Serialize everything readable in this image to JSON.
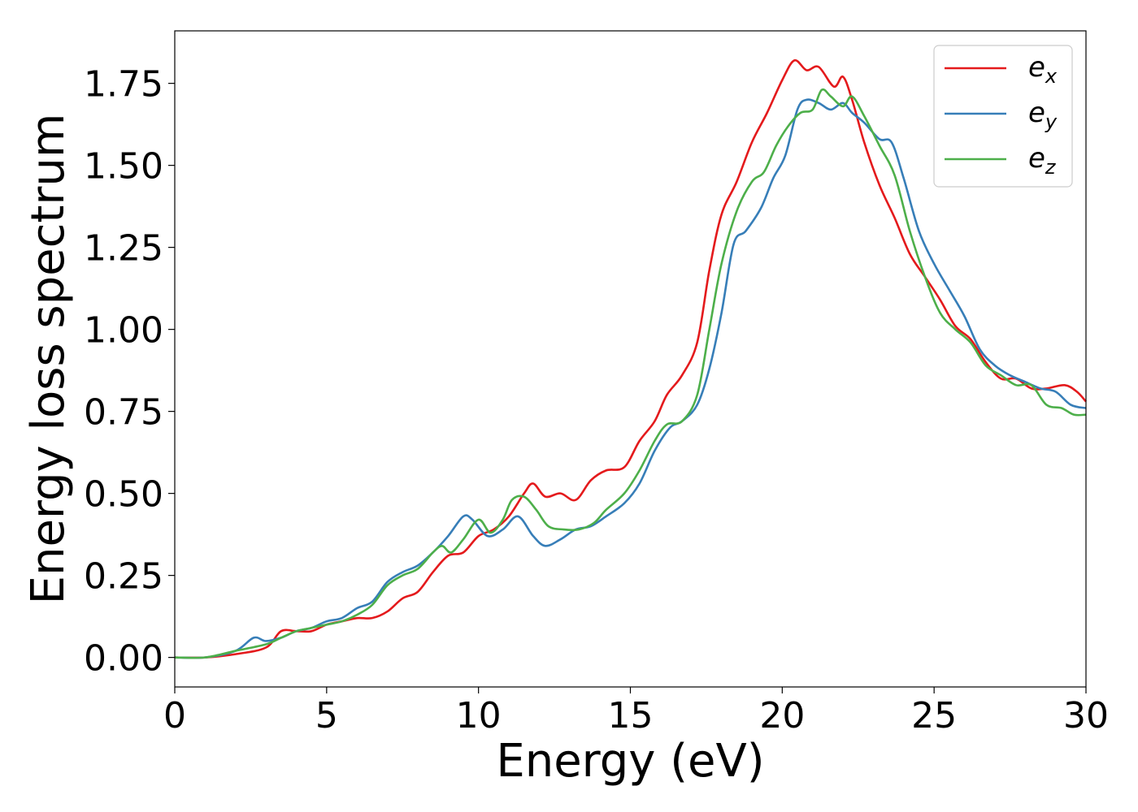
{
  "chart_data": {
    "type": "line",
    "title": "",
    "xlabel": "Energy (eV)",
    "ylabel": "Energy loss spectrum",
    "xlim": [
      0,
      30
    ],
    "ylim": [
      -0.09,
      1.91
    ],
    "xticks": [
      0,
      5,
      10,
      15,
      20,
      25,
      30
    ],
    "xtick_labels": [
      "0",
      "5",
      "10",
      "15",
      "20",
      "25",
      "30"
    ],
    "yticks": [
      0.0,
      0.25,
      0.5,
      0.75,
      1.0,
      1.25,
      1.5,
      1.75
    ],
    "ytick_labels": [
      "0.00",
      "0.25",
      "0.50",
      "0.75",
      "1.00",
      "1.25",
      "1.50",
      "1.75"
    ],
    "grid": false,
    "legend_position": "top-right",
    "series": [
      {
        "name": "e",
        "subscript": "x",
        "color": "#e41a1c",
        "points": [
          [
            0,
            0
          ],
          [
            1,
            0
          ],
          [
            2,
            0.01
          ],
          [
            3,
            0.03
          ],
          [
            3.5,
            0.08
          ],
          [
            4,
            0.08
          ],
          [
            4.5,
            0.08
          ],
          [
            5,
            0.1
          ],
          [
            5.5,
            0.11
          ],
          [
            6,
            0.12
          ],
          [
            6.5,
            0.12
          ],
          [
            7,
            0.14
          ],
          [
            7.5,
            0.18
          ],
          [
            8,
            0.2
          ],
          [
            8.5,
            0.26
          ],
          [
            9,
            0.31
          ],
          [
            9.5,
            0.32
          ],
          [
            10,
            0.37
          ],
          [
            10.5,
            0.39
          ],
          [
            11,
            0.43
          ],
          [
            11.5,
            0.5
          ],
          [
            11.8,
            0.53
          ],
          [
            12.2,
            0.49
          ],
          [
            12.7,
            0.5
          ],
          [
            13.2,
            0.48
          ],
          [
            13.7,
            0.54
          ],
          [
            14.2,
            0.57
          ],
          [
            14.8,
            0.58
          ],
          [
            15.3,
            0.66
          ],
          [
            15.8,
            0.72
          ],
          [
            16.2,
            0.8
          ],
          [
            16.7,
            0.86
          ],
          [
            17.2,
            0.96
          ],
          [
            17.6,
            1.18
          ],
          [
            18,
            1.35
          ],
          [
            18.5,
            1.45
          ],
          [
            19,
            1.57
          ],
          [
            19.5,
            1.66
          ],
          [
            20,
            1.76
          ],
          [
            20.4,
            1.82
          ],
          [
            20.8,
            1.79
          ],
          [
            21.2,
            1.8
          ],
          [
            21.7,
            1.74
          ],
          [
            22,
            1.77
          ],
          [
            22.3,
            1.7
          ],
          [
            22.7,
            1.57
          ],
          [
            23.2,
            1.44
          ],
          [
            23.7,
            1.34
          ],
          [
            24.2,
            1.23
          ],
          [
            24.7,
            1.16
          ],
          [
            25.2,
            1.09
          ],
          [
            25.7,
            1.01
          ],
          [
            26.2,
            0.97
          ],
          [
            26.7,
            0.9
          ],
          [
            27.2,
            0.85
          ],
          [
            27.7,
            0.85
          ],
          [
            28.2,
            0.82
          ],
          [
            28.7,
            0.82
          ],
          [
            29.3,
            0.83
          ],
          [
            29.7,
            0.81
          ],
          [
            30,
            0.78
          ]
        ]
      },
      {
        "name": "e",
        "subscript": "y",
        "color": "#377eb8",
        "points": [
          [
            0,
            0
          ],
          [
            1,
            0
          ],
          [
            2,
            0.02
          ],
          [
            2.6,
            0.06
          ],
          [
            3,
            0.05
          ],
          [
            3.5,
            0.06
          ],
          [
            4,
            0.08
          ],
          [
            4.5,
            0.09
          ],
          [
            5,
            0.11
          ],
          [
            5.5,
            0.12
          ],
          [
            6,
            0.15
          ],
          [
            6.5,
            0.17
          ],
          [
            7,
            0.23
          ],
          [
            7.5,
            0.26
          ],
          [
            8,
            0.28
          ],
          [
            8.5,
            0.32
          ],
          [
            9,
            0.37
          ],
          [
            9.5,
            0.43
          ],
          [
            9.8,
            0.42
          ],
          [
            10.3,
            0.37
          ],
          [
            10.8,
            0.39
          ],
          [
            11.3,
            0.43
          ],
          [
            11.8,
            0.37
          ],
          [
            12.2,
            0.34
          ],
          [
            12.7,
            0.36
          ],
          [
            13.2,
            0.39
          ],
          [
            13.7,
            0.4
          ],
          [
            14.2,
            0.43
          ],
          [
            14.8,
            0.47
          ],
          [
            15.3,
            0.53
          ],
          [
            15.8,
            0.63
          ],
          [
            16.3,
            0.7
          ],
          [
            16.7,
            0.72
          ],
          [
            17.2,
            0.77
          ],
          [
            17.6,
            0.88
          ],
          [
            18,
            1.05
          ],
          [
            18.4,
            1.26
          ],
          [
            18.8,
            1.3
          ],
          [
            19.3,
            1.37
          ],
          [
            19.7,
            1.46
          ],
          [
            20.1,
            1.53
          ],
          [
            20.5,
            1.67
          ],
          [
            20.8,
            1.7
          ],
          [
            21.2,
            1.69
          ],
          [
            21.6,
            1.67
          ],
          [
            22,
            1.69
          ],
          [
            22.3,
            1.66
          ],
          [
            22.7,
            1.63
          ],
          [
            23.2,
            1.58
          ],
          [
            23.6,
            1.57
          ],
          [
            24,
            1.46
          ],
          [
            24.5,
            1.3
          ],
          [
            25,
            1.2
          ],
          [
            25.5,
            1.12
          ],
          [
            26,
            1.04
          ],
          [
            26.5,
            0.94
          ],
          [
            27,
            0.89
          ],
          [
            27.5,
            0.86
          ],
          [
            28,
            0.84
          ],
          [
            28.5,
            0.82
          ],
          [
            29,
            0.81
          ],
          [
            29.5,
            0.77
          ],
          [
            30,
            0.76
          ]
        ]
      },
      {
        "name": "e",
        "subscript": "z",
        "color": "#4daf4a",
        "points": [
          [
            0,
            0
          ],
          [
            1,
            0
          ],
          [
            2,
            0.02
          ],
          [
            3,
            0.04
          ],
          [
            3.5,
            0.06
          ],
          [
            4,
            0.08
          ],
          [
            4.5,
            0.09
          ],
          [
            5,
            0.1
          ],
          [
            5.5,
            0.11
          ],
          [
            6,
            0.13
          ],
          [
            6.5,
            0.16
          ],
          [
            7,
            0.22
          ],
          [
            7.5,
            0.25
          ],
          [
            8,
            0.27
          ],
          [
            8.5,
            0.32
          ],
          [
            8.8,
            0.34
          ],
          [
            9.1,
            0.32
          ],
          [
            9.5,
            0.36
          ],
          [
            10,
            0.42
          ],
          [
            10.4,
            0.38
          ],
          [
            10.8,
            0.42
          ],
          [
            11.1,
            0.48
          ],
          [
            11.5,
            0.49
          ],
          [
            11.9,
            0.45
          ],
          [
            12.3,
            0.4
          ],
          [
            12.8,
            0.39
          ],
          [
            13.3,
            0.39
          ],
          [
            13.8,
            0.41
          ],
          [
            14.2,
            0.45
          ],
          [
            14.8,
            0.5
          ],
          [
            15.3,
            0.57
          ],
          [
            15.8,
            0.66
          ],
          [
            16.2,
            0.71
          ],
          [
            16.7,
            0.72
          ],
          [
            17.2,
            0.8
          ],
          [
            17.6,
            1.0
          ],
          [
            18,
            1.2
          ],
          [
            18.5,
            1.36
          ],
          [
            19,
            1.45
          ],
          [
            19.4,
            1.48
          ],
          [
            19.8,
            1.56
          ],
          [
            20.2,
            1.62
          ],
          [
            20.6,
            1.66
          ],
          [
            21,
            1.67
          ],
          [
            21.3,
            1.73
          ],
          [
            21.6,
            1.71
          ],
          [
            22,
            1.68
          ],
          [
            22.3,
            1.71
          ],
          [
            22.7,
            1.65
          ],
          [
            23.2,
            1.56
          ],
          [
            23.7,
            1.47
          ],
          [
            24.2,
            1.3
          ],
          [
            24.7,
            1.16
          ],
          [
            25.2,
            1.05
          ],
          [
            25.7,
            1.0
          ],
          [
            26.2,
            0.96
          ],
          [
            26.7,
            0.89
          ],
          [
            27.2,
            0.86
          ],
          [
            27.7,
            0.83
          ],
          [
            28.2,
            0.83
          ],
          [
            28.7,
            0.77
          ],
          [
            29.2,
            0.76
          ],
          [
            29.6,
            0.74
          ],
          [
            30,
            0.74
          ]
        ]
      }
    ]
  }
}
